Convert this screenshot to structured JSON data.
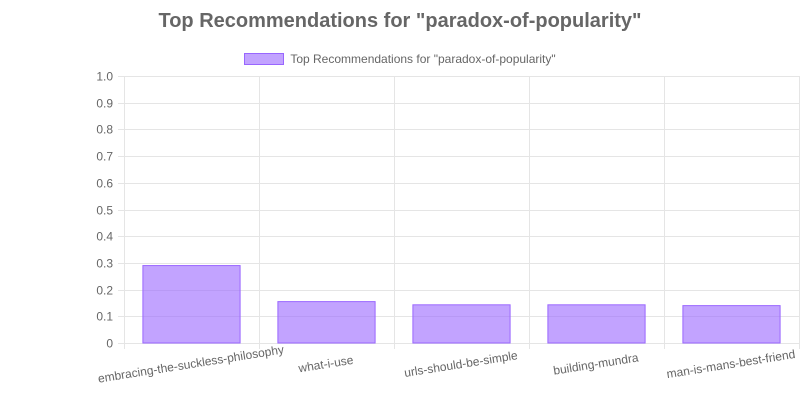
{
  "chart_data": {
    "type": "bar",
    "title": "Top Recommendations for \"paradox-of-popularity\"",
    "categories": [
      "embracing-the-suckless-philosophy",
      "what-i-use",
      "urls-should-be-simple",
      "building-mundra",
      "man-is-mans-best-friend"
    ],
    "series": [
      {
        "name": "Top Recommendations for \"paradox-of-popularity\"",
        "values": [
          0.29,
          0.155,
          0.143,
          0.143,
          0.14
        ]
      }
    ],
    "ylim": [
      0,
      1
    ],
    "yticks": [
      "0",
      "0.1",
      "0.2",
      "0.3",
      "0.4",
      "0.5",
      "0.6",
      "0.7",
      "0.8",
      "0.9",
      "1.0"
    ],
    "legend_position": "top",
    "grid": true,
    "colors": {
      "bar_fill": "rgba(153, 102, 255, 0.6)",
      "bar_border": "#9966ff",
      "grid": "#e5e5e5",
      "text": "#666666"
    }
  }
}
